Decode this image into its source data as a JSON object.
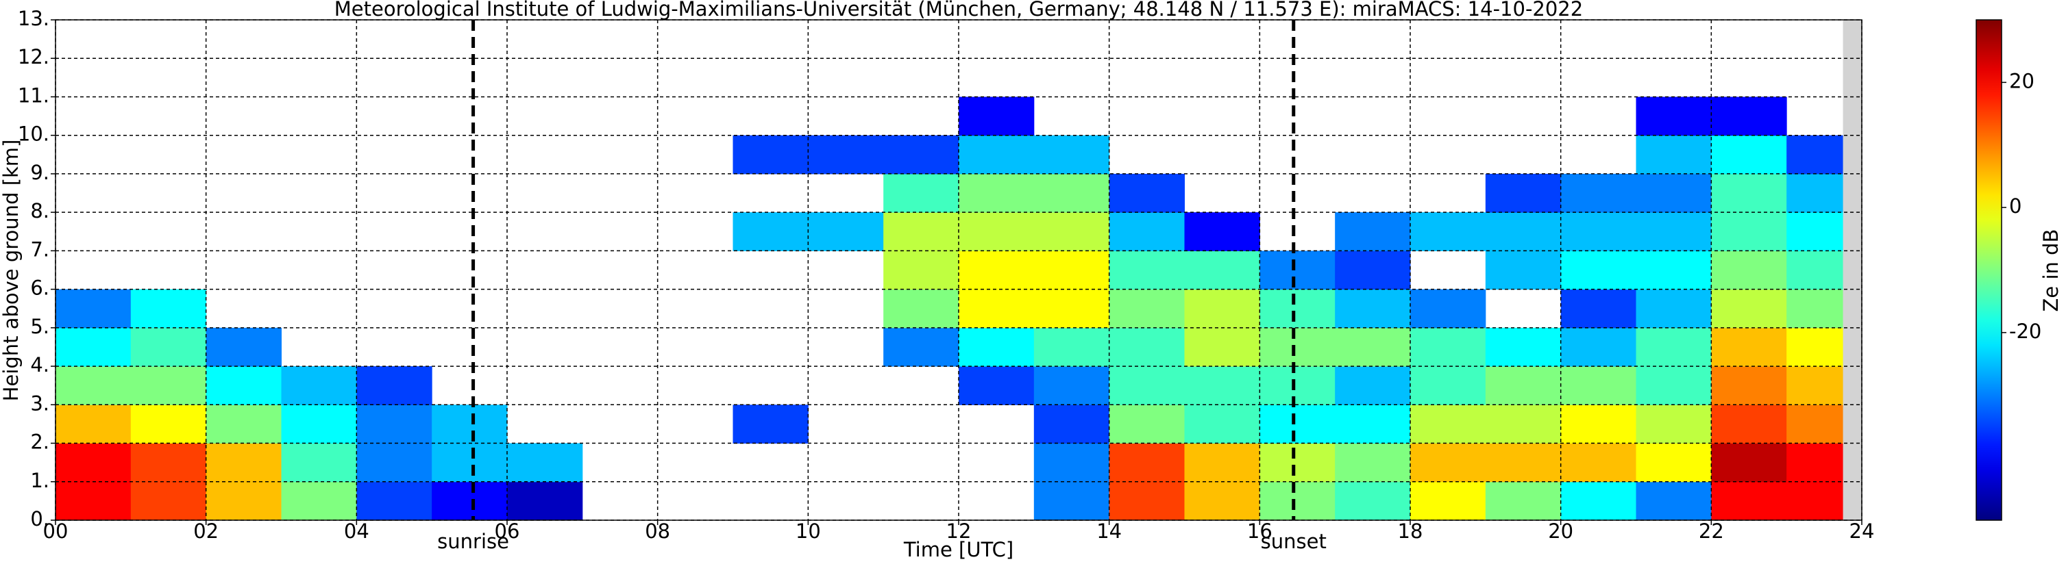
{
  "chart_data": {
    "type": "heatmap",
    "title": "Meteorological Institute of Ludwig-Maximilians-Universität (München, Germany; 48.148 N / 11.573 E):    miraMACS: 14-10-2022",
    "x_label": "Time [UTC]",
    "y_label": "Height above ground [km]",
    "colorbar_label": "Ze in dB",
    "xlim": [
      0,
      24
    ],
    "xticks": [
      {
        "value": 0,
        "label": "00"
      },
      {
        "value": 2,
        "label": "02"
      },
      {
        "value": 4,
        "label": "04"
      },
      {
        "value": 6,
        "label": "06"
      },
      {
        "value": 8,
        "label": "08"
      },
      10,
      12,
      14,
      16,
      18,
      20,
      22,
      24
    ],
    "ylim": [
      0,
      13
    ],
    "yticks": [
      {
        "value": 0,
        "label": "0."
      },
      {
        "value": 1,
        "label": "1."
      },
      {
        "value": 2,
        "label": "2."
      },
      {
        "value": 3,
        "label": "3."
      },
      {
        "value": 4,
        "label": "4."
      },
      {
        "value": 5,
        "label": "5."
      },
      {
        "value": 6,
        "label": "6."
      },
      {
        "value": 7,
        "label": "7."
      },
      {
        "value": 8,
        "label": "8."
      },
      {
        "value": 9,
        "label": "9."
      },
      {
        "value": 10,
        "label": "10."
      },
      {
        "value": 11,
        "label": "11."
      },
      {
        "value": 12,
        "label": "12."
      },
      {
        "value": 13,
        "label": "13."
      }
    ],
    "clim": [
      -50,
      30
    ],
    "cticks": [
      -20,
      0,
      20
    ],
    "colormap": "jet",
    "grid": true,
    "missing_x": [
      23.75,
      24
    ],
    "annotations": [
      {
        "label": "sunrise",
        "x": 5.55
      },
      {
        "label": "sunset",
        "x": 16.45
      }
    ],
    "x": [
      0.5,
      1.5,
      2.5,
      3.5,
      4.5,
      5.5,
      6.5,
      7.5,
      8.5,
      9.5,
      10.5,
      11.5,
      12.5,
      13.5,
      14.5,
      15.5,
      16.5,
      17.5,
      18.5,
      19.5,
      20.5,
      21.5,
      22.5,
      23.5
    ],
    "y": [
      0.5,
      1.5,
      2.5,
      3.5,
      4.5,
      5.5,
      6.5,
      7.5,
      8.5,
      9.5,
      10.5
    ],
    "z": [
      [
        20,
        15,
        5,
        -10,
        -35,
        -40,
        -45,
        null,
        null,
        null,
        null,
        null,
        null,
        -30,
        15,
        5,
        -10,
        -15,
        0,
        -10,
        -20,
        -30,
        20,
        20
      ],
      [
        20,
        15,
        5,
        -15,
        -30,
        -25,
        -25,
        null,
        null,
        null,
        null,
        null,
        null,
        -30,
        15,
        5,
        -5,
        -10,
        5,
        5,
        5,
        0,
        25,
        20
      ],
      [
        5,
        0,
        -10,
        -20,
        -30,
        -25,
        null,
        null,
        null,
        -35,
        null,
        null,
        null,
        -35,
        -10,
        -15,
        -20,
        -20,
        -5,
        -5,
        0,
        -5,
        15,
        10
      ],
      [
        -10,
        -10,
        -20,
        -25,
        -35,
        null,
        null,
        null,
        null,
        null,
        null,
        null,
        -35,
        -30,
        -15,
        -15,
        -15,
        -25,
        -15,
        -10,
        -10,
        -15,
        10,
        5
      ],
      [
        -20,
        -15,
        -30,
        null,
        null,
        null,
        null,
        null,
        null,
        null,
        null,
        -30,
        -20,
        -15,
        -15,
        -5,
        -10,
        -10,
        -15,
        -20,
        -25,
        -15,
        5,
        0
      ],
      [
        -30,
        -20,
        null,
        null,
        null,
        null,
        null,
        null,
        null,
        null,
        null,
        -10,
        0,
        0,
        -10,
        -5,
        -15,
        -25,
        -30,
        null,
        -35,
        -25,
        -5,
        -10
      ],
      [
        null,
        null,
        null,
        null,
        null,
        null,
        null,
        null,
        null,
        null,
        null,
        -5,
        0,
        0,
        -15,
        -15,
        -30,
        -35,
        null,
        -25,
        -20,
        -20,
        -10,
        -15
      ],
      [
        null,
        null,
        null,
        null,
        null,
        null,
        null,
        null,
        null,
        -25,
        -25,
        -5,
        -5,
        -5,
        -25,
        -40,
        null,
        -30,
        -25,
        -25,
        -25,
        -25,
        -15,
        -20
      ],
      [
        null,
        null,
        null,
        null,
        null,
        null,
        null,
        null,
        null,
        null,
        null,
        -15,
        -10,
        -10,
        -35,
        null,
        null,
        null,
        null,
        -35,
        -30,
        -30,
        -15,
        -25
      ],
      [
        null,
        null,
        null,
        null,
        null,
        null,
        null,
        null,
        null,
        -35,
        -35,
        -35,
        -25,
        -25,
        null,
        null,
        null,
        null,
        null,
        null,
        null,
        -25,
        -20,
        -35
      ],
      [
        null,
        null,
        null,
        null,
        null,
        null,
        null,
        null,
        null,
        null,
        null,
        null,
        -40,
        null,
        null,
        null,
        null,
        null,
        null,
        null,
        null,
        -40,
        -40,
        null
      ]
    ]
  }
}
